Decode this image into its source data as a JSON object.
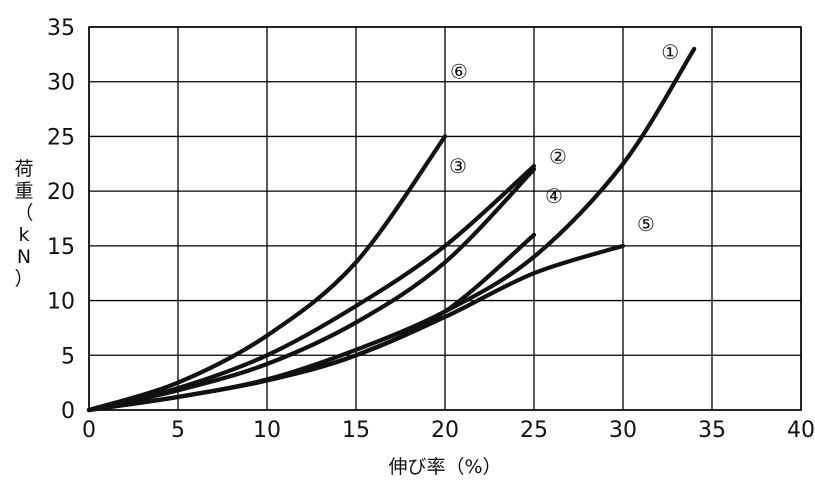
{
  "chart_data": {
    "type": "line",
    "xlabel": "伸び率（%）",
    "ylabel": "荷重（kN）",
    "xlim": [
      0,
      40
    ],
    "ylim": [
      0,
      35
    ],
    "x_ticks": [
      "0",
      "5",
      "10",
      "15",
      "20",
      "25",
      "30",
      "35",
      "40"
    ],
    "y_ticks": [
      "0",
      "5",
      "10",
      "15",
      "20",
      "25",
      "30",
      "35"
    ],
    "grid": true,
    "series": [
      {
        "name": "①",
        "x": [
          0,
          5,
          10,
          15,
          20,
          25,
          30,
          34
        ],
        "y": [
          0,
          1.2,
          2.8,
          5.5,
          9.0,
          14.0,
          22.5,
          33.0
        ]
      },
      {
        "name": "②",
        "x": [
          0,
          5,
          10,
          15,
          20,
          25
        ],
        "y": [
          0,
          1.8,
          4.2,
          8.0,
          13.5,
          22.0
        ]
      },
      {
        "name": "③",
        "x": [
          0,
          5,
          10,
          15,
          20,
          25
        ],
        "y": [
          0,
          2.0,
          5.0,
          9.5,
          15.0,
          22.3
        ]
      },
      {
        "name": "④",
        "x": [
          0,
          5,
          10,
          15,
          20,
          25
        ],
        "y": [
          0,
          1.2,
          2.7,
          5.0,
          9.0,
          16.0
        ]
      },
      {
        "name": "⑤",
        "x": [
          0,
          5,
          10,
          15,
          20,
          25,
          30
        ],
        "y": [
          0,
          1.2,
          2.7,
          5.0,
          8.5,
          12.5,
          15.0
        ]
      },
      {
        "name": "⑥",
        "x": [
          0,
          5,
          10,
          15,
          20
        ],
        "y": [
          0,
          2.5,
          6.8,
          13.5,
          25.0
        ]
      }
    ]
  }
}
